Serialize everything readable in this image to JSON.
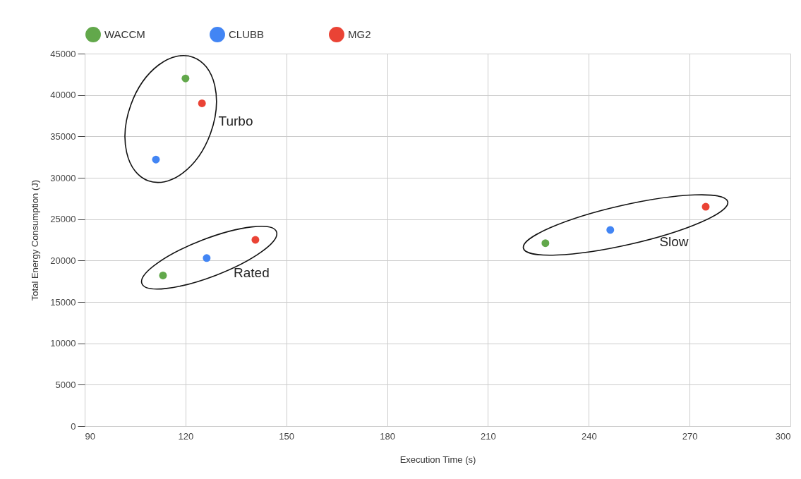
{
  "chart_data": {
    "type": "scatter",
    "xlabel": "Execution Time (s)",
    "ylabel": "Total Energy Consumption (J)",
    "xlim": [
      90,
      300
    ],
    "xticks": [
      90,
      120,
      150,
      180,
      210,
      240,
      270,
      300
    ],
    "ylim": [
      0,
      45000
    ],
    "yticks": [
      0,
      5000,
      10000,
      15000,
      20000,
      25000,
      30000,
      35000,
      40000,
      45000
    ],
    "grid": true,
    "legend": "top",
    "marker": "circle",
    "series": [
      {
        "name": "WACCM",
        "color": "#62a84b",
        "x": [
          120,
          113.3,
          227.1
        ],
        "values": [
          42000,
          18200,
          22100
        ]
      },
      {
        "name": "CLUBB",
        "color": "#4285f4",
        "x": [
          111.2,
          126.3,
          246.4
        ],
        "values": [
          32200,
          20300,
          23700
        ]
      },
      {
        "name": "MG2",
        "color": "#ea4335",
        "x": [
          124.9,
          140.8,
          274.8
        ],
        "values": [
          39000,
          22500,
          26500
        ]
      }
    ],
    "annotations": [
      "Turbo",
      "Rated",
      "Slow"
    ]
  }
}
